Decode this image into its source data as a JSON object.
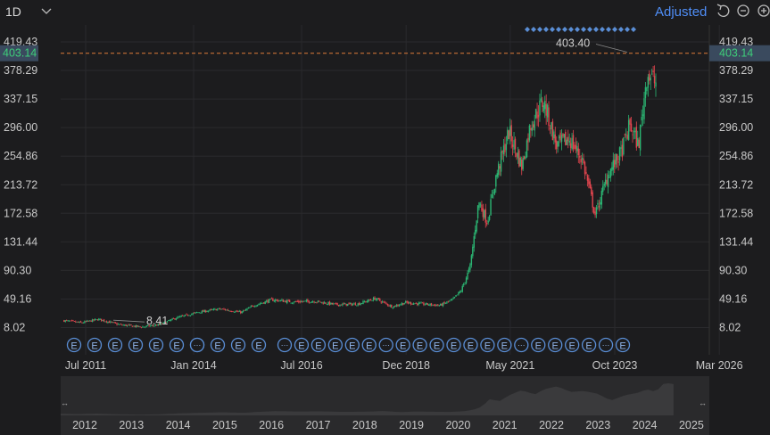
{
  "toolbar": {
    "interval": "1D",
    "adjust_label": "Adjusted"
  },
  "chart_data": {
    "type": "candlestick",
    "y_ticks": [
      "419.43",
      "378.29",
      "337.15",
      "296.00",
      "254.86",
      "213.72",
      "172.58",
      "131.44",
      "90.30",
      "49.16",
      "8.02"
    ],
    "y_tick_values": [
      419.43,
      378.29,
      337.15,
      296.0,
      254.86,
      213.72,
      172.58,
      131.44,
      90.3,
      49.16,
      8.02
    ],
    "x_ticks": [
      "Jul 2011",
      "Jan 2014",
      "Jul 2016",
      "Dec 2018",
      "May 2021",
      "Oct 2023",
      "Mar 2026"
    ],
    "x_tick_years": [
      2011.5,
      2014.0,
      2016.5,
      2018.92,
      2021.33,
      2023.75,
      2026.17
    ],
    "navigator_years": [
      "2012",
      "2013",
      "2014",
      "2015",
      "2016",
      "2017",
      "2018",
      "2019",
      "2020",
      "2021",
      "2022",
      "2023",
      "2024",
      "2025"
    ],
    "current_price": "403.14",
    "current_value": 403.14,
    "max_label": "403.40",
    "max_value": 403.4,
    "min_label": "8.41",
    "min_value": 8.41,
    "x_range": [
      2011.0,
      2026.5
    ],
    "y_range": [
      -10,
      430
    ],
    "series_outline": [
      [
        2011.0,
        18
      ],
      [
        2011.4,
        15
      ],
      [
        2011.8,
        20
      ],
      [
        2012.3,
        12
      ],
      [
        2012.8,
        9
      ],
      [
        2013.2,
        12
      ],
      [
        2013.6,
        22
      ],
      [
        2014.1,
        30
      ],
      [
        2014.6,
        35
      ],
      [
        2015.1,
        30
      ],
      [
        2015.4,
        40
      ],
      [
        2015.8,
        48
      ],
      [
        2016.3,
        45
      ],
      [
        2016.8,
        46
      ],
      [
        2017.3,
        41
      ],
      [
        2017.8,
        42
      ],
      [
        2018.2,
        50
      ],
      [
        2018.6,
        38
      ],
      [
        2018.9,
        44
      ],
      [
        2019.3,
        42
      ],
      [
        2019.7,
        40
      ],
      [
        2020.0,
        48
      ],
      [
        2020.2,
        62
      ],
      [
        2020.4,
        95
      ],
      [
        2020.6,
        190
      ],
      [
        2020.8,
        160
      ],
      [
        2021.0,
        225
      ],
      [
        2021.3,
        290
      ],
      [
        2021.6,
        240
      ],
      [
        2021.8,
        300
      ],
      [
        2022.1,
        335
      ],
      [
        2022.4,
        270
      ],
      [
        2022.7,
        280
      ],
      [
        2023.0,
        250
      ],
      [
        2023.3,
        170
      ],
      [
        2023.6,
        230
      ],
      [
        2023.9,
        260
      ],
      [
        2024.1,
        300
      ],
      [
        2024.3,
        270
      ],
      [
        2024.5,
        375
      ],
      [
        2024.7,
        360
      ]
    ],
    "earnings_markers": [
      "E",
      "E",
      "E",
      "E",
      "E",
      "E",
      "E",
      "…",
      "E",
      "E",
      "E",
      "…",
      "E",
      "E",
      "E",
      "E",
      "E",
      "…",
      "E",
      "E",
      "E",
      "E",
      "E",
      "E",
      "E",
      "…",
      "E",
      "E",
      "E",
      "E",
      "…",
      "E"
    ],
    "dividend_marker_count": 18
  },
  "colors": {
    "background": "#1c1c1e",
    "up": "#2bb673",
    "down": "#e0454e",
    "price_line": "#e07b39",
    "price_tag": "#3a4a5e",
    "marker": "#5a8ed6",
    "accent": "#4f8ef7"
  }
}
